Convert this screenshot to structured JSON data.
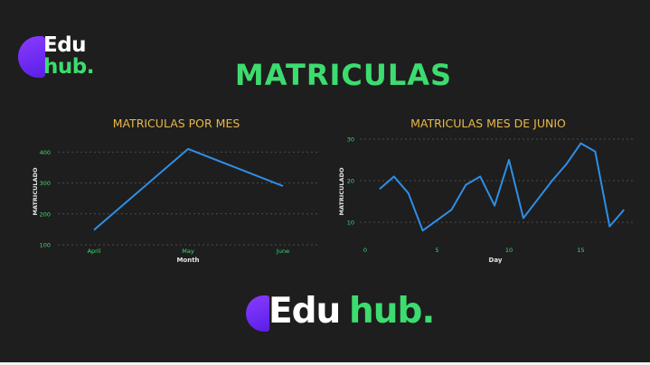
{
  "logo_top": {
    "line1": "Edu",
    "line2": "hub."
  },
  "title": "MATRICULAS",
  "logo_bottom": {
    "word1": "Edu",
    "word2": "hub."
  },
  "colors": {
    "background": "#1e1e1e",
    "accent_green": "#3ddc6f",
    "chart_title": "#e8b84a",
    "line": "#2f8ee6",
    "logo_purple": "#7a30ff"
  },
  "chart_data": [
    {
      "type": "line",
      "title": "MATRICULAS POR MES",
      "xlabel": "Month",
      "ylabel": "MATRICULADO",
      "categories": [
        "April",
        "May",
        "June"
      ],
      "values": [
        148,
        410,
        290
      ],
      "ylim": [
        100,
        430
      ],
      "yticks": [
        100,
        200,
        300,
        400
      ],
      "grid": true
    },
    {
      "type": "line",
      "title": "MATRICULAS MES DE JUNIO",
      "xlabel": "Day",
      "ylabel": "MATRICULADO",
      "x": [
        1,
        2,
        3,
        4,
        5,
        6,
        7,
        8,
        9,
        10,
        11,
        12,
        13,
        14,
        15,
        16,
        17,
        18
      ],
      "values": [
        18,
        21,
        17,
        8,
        10.5,
        13,
        19,
        21,
        14,
        25,
        11,
        15.5,
        20,
        24,
        29,
        27,
        9,
        13
      ],
      "xlim": [
        0,
        18
      ],
      "ylim": [
        5,
        31
      ],
      "xticks": [
        0,
        5,
        10,
        15
      ],
      "yticks": [
        10,
        20,
        30
      ],
      "grid": true
    }
  ]
}
